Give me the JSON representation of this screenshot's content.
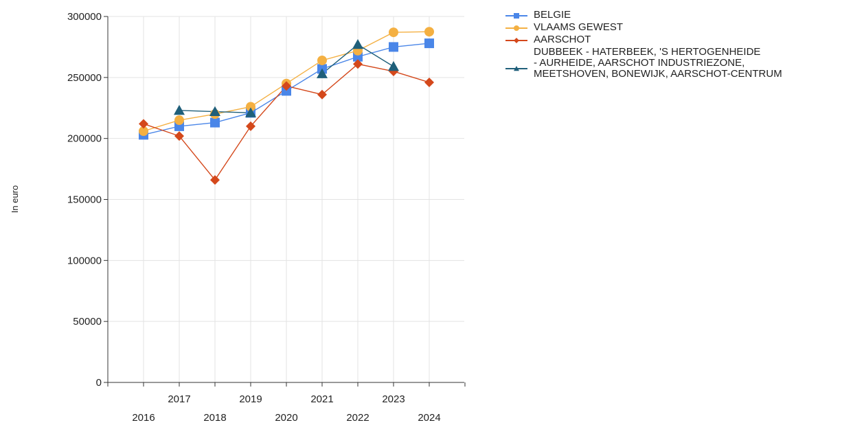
{
  "chart_data": {
    "type": "line",
    "title": "",
    "xlabel": "",
    "ylabel": "In euro",
    "x": [
      "2016",
      "2017",
      "2018",
      "2019",
      "2020",
      "2021",
      "2022",
      "2023",
      "2024"
    ],
    "ylim": [
      0,
      300000
    ],
    "yticks": [
      0,
      50000,
      100000,
      150000,
      200000,
      250000,
      300000
    ],
    "ytick_labels": [
      "0",
      "50000",
      "100000",
      "150000",
      "200000",
      "250000",
      "300000"
    ],
    "grid": true,
    "legend_position": "right",
    "series": [
      {
        "name": "BELGIE",
        "color": "#4a86e8",
        "marker": "square",
        "values": [
          203000,
          210000,
          213000,
          221000,
          239000,
          257000,
          267000,
          275000,
          278000
        ]
      },
      {
        "name": "VLAAMS GEWEST",
        "color": "#f4b042",
        "marker": "circle",
        "values": [
          206000,
          215000,
          220000,
          226000,
          245000,
          264000,
          272000,
          287000,
          287500
        ]
      },
      {
        "name": "AARSCHOT",
        "color": "#d4481b",
        "marker": "diamond",
        "values": [
          212000,
          202000,
          166000,
          210000,
          243000,
          236000,
          261000,
          255000,
          246000
        ]
      },
      {
        "name": "DUBBEEK - HATERBEEK, 'S HERTOGENHEIDE\n- AURHEIDE, AARSCHOT INDUSTRIEZONE,\nMEETSHOVEN, BONEWIJK, AARSCHOT-CENTRUM",
        "color": "#1f5f7a",
        "marker": "triangle",
        "values": [
          null,
          223000,
          222000,
          221000,
          null,
          253000,
          277000,
          259000,
          null
        ]
      }
    ]
  }
}
